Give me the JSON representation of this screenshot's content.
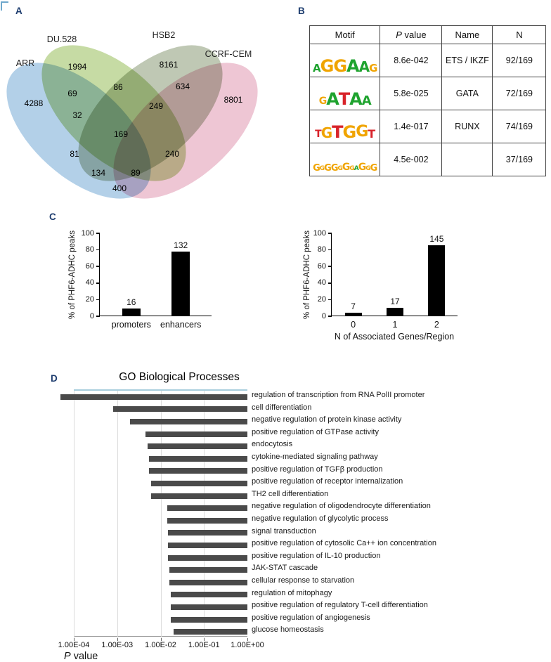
{
  "panels": {
    "a": "A",
    "b": "B",
    "c": "C",
    "d": "D"
  },
  "motif_table": {
    "h_motif": "Motif",
    "p_italic": "P",
    "p_rest": " value",
    "h_name": "Name",
    "h_n": "N",
    "logo_colors": {
      "A": "#1fa32f",
      "C": "#2457c5",
      "G": "#f0a400",
      "T": "#d8232a"
    },
    "rows": [
      {
        "logo": [
          [
            "A",
            15
          ],
          [
            "G",
            24
          ],
          [
            "G",
            24
          ],
          [
            "A",
            24
          ],
          [
            "A",
            20
          ],
          [
            "G",
            15
          ]
        ],
        "p": "8.6e-042",
        "name": "ETS / IKZF",
        "n": "92/169"
      },
      {
        "logo": [
          [
            "G",
            14
          ],
          [
            "A",
            24
          ],
          [
            "T",
            24
          ],
          [
            "A",
            24
          ],
          [
            "A",
            18
          ]
        ],
        "p": "5.8e-025",
        "name": "GATA",
        "n": "72/169"
      },
      {
        "logo": [
          [
            "T",
            14
          ],
          [
            "G",
            20
          ],
          [
            "T",
            24
          ],
          [
            "G",
            24
          ],
          [
            "G",
            22
          ],
          [
            "T",
            16
          ]
        ],
        "p": "1.4e-017",
        "name": "RUNX",
        "n": "74/169"
      },
      {
        "logo": [
          [
            "G",
            13
          ],
          [
            "G",
            9
          ],
          [
            "G",
            13
          ],
          [
            "G",
            13
          ],
          [
            "G",
            9
          ],
          [
            "G",
            14
          ],
          [
            "G",
            9
          ],
          [
            "A",
            9
          ],
          [
            "G",
            14
          ],
          [
            "G",
            9
          ],
          [
            "G",
            13
          ]
        ],
        "p": "4.5e-002",
        "name": "",
        "n": "37/169"
      }
    ]
  },
  "chart_data": [
    {
      "type": "venn4",
      "title": "",
      "sets": [
        "ARR",
        "DU.528",
        "HSB2",
        "CCRF-CEM"
      ],
      "colors": {
        "ARR": "#b3d0e8",
        "DU.528": "#c6dba4",
        "HSB2": "#bfc8b4",
        "CCRF-CEM": "#eec6d4"
      },
      "regions": [
        {
          "sets": [
            "ARR"
          ],
          "value": 4288
        },
        {
          "sets": [
            "DU.528"
          ],
          "value": 1994
        },
        {
          "sets": [
            "HSB2"
          ],
          "value": 8161
        },
        {
          "sets": [
            "CCRF-CEM"
          ],
          "value": 8801
        },
        {
          "sets": [
            "ARR",
            "DU.528"
          ],
          "value": 69
        },
        {
          "sets": [
            "DU.528",
            "HSB2"
          ],
          "value": 86
        },
        {
          "sets": [
            "HSB2",
            "CCRF-CEM"
          ],
          "value": 634
        },
        {
          "sets": [
            "ARR",
            "DU.528",
            "HSB2"
          ],
          "value": 32
        },
        {
          "sets": [
            "DU.528",
            "HSB2",
            "CCRF-CEM"
          ],
          "value": 249
        },
        {
          "sets": [
            "ARR",
            "DU.528",
            "HSB2",
            "CCRF-CEM"
          ],
          "value": 169
        },
        {
          "sets": [
            "ARR",
            "HSB2"
          ],
          "value": 81
        },
        {
          "sets": [
            "ARR",
            "HSB2",
            "CCRF-CEM"
          ],
          "value": 134
        },
        {
          "sets": [
            "ARR",
            "DU.528",
            "CCRF-CEM"
          ],
          "value": 89
        },
        {
          "sets": [
            "DU.528",
            "CCRF-CEM"
          ],
          "value": 240
        },
        {
          "sets": [
            "ARR",
            "CCRF-CEM"
          ],
          "value": 400
        }
      ]
    },
    {
      "type": "bar",
      "categories": [
        "promoters",
        "enhancers"
      ],
      "values": [
        9.5,
        78.1
      ],
      "bar_labels": [
        "16",
        "132"
      ],
      "ylabel": "% of PHF6-ADHC peaks",
      "xlabel": "",
      "ylim": [
        0,
        100
      ],
      "yticks": [
        0,
        20,
        40,
        60,
        80,
        100
      ],
      "bar_color": "#000000"
    },
    {
      "type": "bar",
      "categories": [
        "0",
        "1",
        "2"
      ],
      "values": [
        4.1,
        10.1,
        85.8
      ],
      "bar_labels": [
        "7",
        "17",
        "145"
      ],
      "ylabel": "% of PHF6-ADHC peaks",
      "xlabel": "N of Associated Genes/Region",
      "ylim": [
        0,
        100
      ],
      "yticks": [
        0,
        20,
        40,
        60,
        80,
        100
      ],
      "bar_color": "#000000"
    },
    {
      "type": "bar-horizontal",
      "title": "GO Biological Processes",
      "xlabel": "P value",
      "xlabel_italic": "P",
      "xlabel_rest": " value",
      "xscale": "log",
      "xlim": [
        0.0001,
        1
      ],
      "xticklabels": [
        "1.00E-04",
        "1.00E-03",
        "1.00E-02",
        "1.00E-01",
        "1.00E+00"
      ],
      "grid": true,
      "bar_color": "#4a4a4a",
      "categories": [
        "regulation of transcription from RNA PolII promoter",
        "cell differentiation",
        "negative regulation of protein kinase activity",
        "positive regulation of GTPase activity",
        "endocytosis",
        "cytokine-mediated signaling pathway",
        "positive regulation of TGFβ production",
        "positive regulation of receptor internalization",
        "TH2 cell differentiation",
        "negative regulation of oligodendrocyte differentiation",
        "negative regulation of glycolytic process",
        "signal transduction",
        "positive regulation of cytosolic Ca++ ion concentration",
        "positive regulation of IL-10 production",
        "JAK-STAT cascade",
        "cellular response to starvation",
        "regulation of mitophagy",
        "positive regulation of regulatory T-cell differentiation",
        "positive regulation of angiogenesis",
        "glucose homeostasis"
      ],
      "values": [
        5e-05,
        0.0008,
        0.002,
        0.0045,
        0.005,
        0.0055,
        0.0055,
        0.006,
        0.006,
        0.014,
        0.014,
        0.015,
        0.015,
        0.015,
        0.016,
        0.016,
        0.017,
        0.017,
        0.017,
        0.02
      ]
    }
  ]
}
